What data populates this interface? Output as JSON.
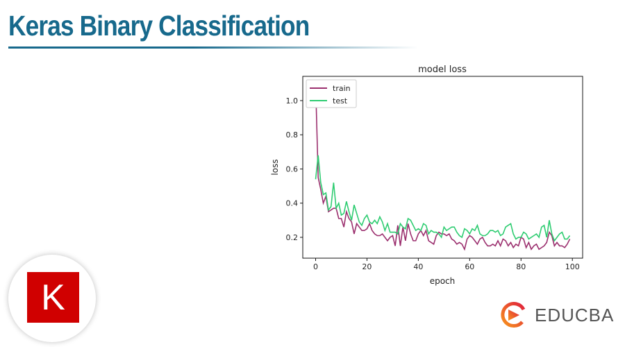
{
  "header": {
    "title": "Keras Binary Classification"
  },
  "logos": {
    "keras_letter": "K",
    "educba": "EDUCBA"
  },
  "colors": {
    "title": "#17698c",
    "train": "#9b2f6e",
    "test": "#2ecc71",
    "keras": "#d00000"
  },
  "chart_data": {
    "type": "line",
    "title": "model loss",
    "xlabel": "epoch",
    "ylabel": "loss",
    "xlim": [
      -5,
      104
    ],
    "ylim": [
      0.078,
      1.142
    ],
    "xticks": [
      0,
      20,
      40,
      60,
      80,
      100
    ],
    "xtick_labels": [
      "0",
      "20",
      "40",
      "60",
      "80",
      "100"
    ],
    "yticks": [
      0.2,
      0.4,
      0.6,
      0.8,
      1.0
    ],
    "ytick_labels": [
      "0.2",
      "0.4",
      "0.6",
      "0.8",
      "1.0"
    ],
    "legend_position": "top-left",
    "series": [
      {
        "name": "train",
        "color": "#9b2f6e",
        "values": [
          1.1,
          0.55,
          0.48,
          0.4,
          0.44,
          0.35,
          0.36,
          0.37,
          0.37,
          0.31,
          0.31,
          0.26,
          0.35,
          0.31,
          0.29,
          0.22,
          0.28,
          0.26,
          0.24,
          0.24,
          0.25,
          0.28,
          0.24,
          0.22,
          0.21,
          0.21,
          0.22,
          0.2,
          0.18,
          0.2,
          0.21,
          0.15,
          0.27,
          0.15,
          0.26,
          0.18,
          0.28,
          0.22,
          0.18,
          0.18,
          0.22,
          0.24,
          0.21,
          0.24,
          0.18,
          0.17,
          0.16,
          0.21,
          0.23,
          0.22,
          0.22,
          0.21,
          0.22,
          0.19,
          0.18,
          0.16,
          0.17,
          0.16,
          0.13,
          0.19,
          0.21,
          0.2,
          0.18,
          0.16,
          0.19,
          0.2,
          0.17,
          0.15,
          0.15,
          0.16,
          0.15,
          0.18,
          0.15,
          0.19,
          0.18,
          0.15,
          0.17,
          0.14,
          0.16,
          0.15,
          0.2,
          0.19,
          0.14,
          0.17,
          0.13,
          0.15,
          0.16,
          0.13,
          0.14,
          0.15,
          0.17,
          0.23,
          0.21,
          0.15,
          0.17,
          0.15,
          0.15,
          0.14,
          0.16,
          0.19
        ]
      },
      {
        "name": "test",
        "color": "#2ecc71",
        "values": [
          0.54,
          0.68,
          0.52,
          0.45,
          0.46,
          0.36,
          0.38,
          0.52,
          0.37,
          0.4,
          0.33,
          0.34,
          0.41,
          0.35,
          0.3,
          0.39,
          0.34,
          0.29,
          0.27,
          0.31,
          0.33,
          0.29,
          0.28,
          0.3,
          0.28,
          0.32,
          0.29,
          0.24,
          0.28,
          0.23,
          0.23,
          0.23,
          0.22,
          0.28,
          0.26,
          0.25,
          0.31,
          0.3,
          0.27,
          0.24,
          0.25,
          0.24,
          0.28,
          0.27,
          0.22,
          0.24,
          0.23,
          0.23,
          0.22,
          0.2,
          0.26,
          0.24,
          0.25,
          0.26,
          0.26,
          0.23,
          0.21,
          0.2,
          0.25,
          0.24,
          0.22,
          0.25,
          0.24,
          0.27,
          0.22,
          0.21,
          0.21,
          0.22,
          0.24,
          0.24,
          0.23,
          0.24,
          0.21,
          0.22,
          0.26,
          0.27,
          0.28,
          0.22,
          0.19,
          0.2,
          0.2,
          0.23,
          0.22,
          0.19,
          0.2,
          0.21,
          0.22,
          0.2,
          0.26,
          0.27,
          0.2,
          0.3,
          0.22,
          0.18,
          0.2,
          0.22,
          0.23,
          0.19,
          0.19,
          0.21
        ]
      }
    ]
  }
}
